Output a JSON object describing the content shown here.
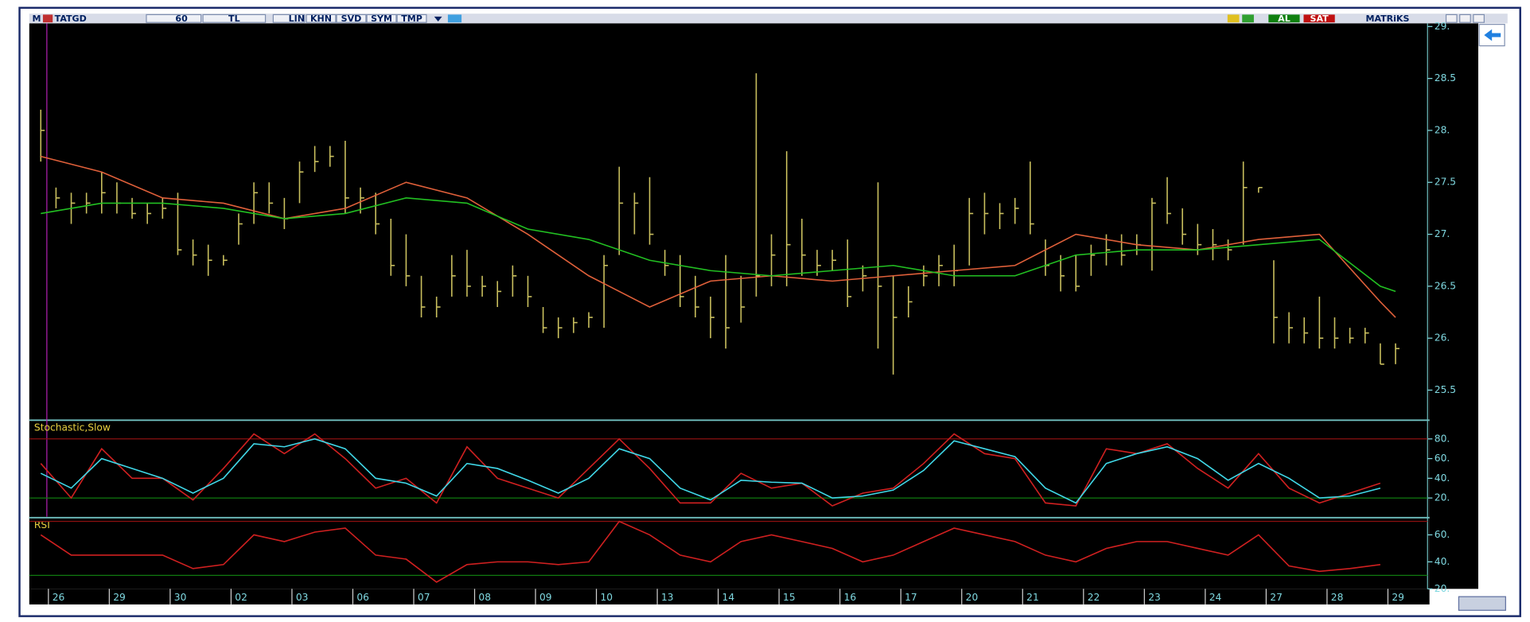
{
  "toolbar": {
    "logo": "M",
    "symbol": "TATGD",
    "period": "60",
    "currency": "TL",
    "buttons": [
      "LIN",
      "KHN",
      "SVD",
      "SYM",
      "TMP"
    ],
    "actions": [
      "AL",
      "SAT"
    ],
    "brand": "MATRiKS"
  },
  "chart_data": [
    {
      "type": "ohlc",
      "color": "#c9bf5e",
      "xlim": [
        -0.5,
        89.5
      ],
      "ylim": [
        25.22,
        29.03
      ],
      "yticks": [
        {
          "value": 25.5,
          "label": "25.5"
        },
        {
          "value": 26,
          "label": "26."
        },
        {
          "value": 26.5,
          "label": "26.5"
        },
        {
          "value": 27,
          "label": "27."
        },
        {
          "value": 27.5,
          "label": "27.5"
        },
        {
          "value": 28,
          "label": "28."
        },
        {
          "value": 28.5,
          "label": "28.5"
        },
        {
          "value": 29,
          "label": "29."
        }
      ],
      "xticks": [
        {
          "value": 1,
          "label": "26"
        },
        {
          "value": 5,
          "label": "29"
        },
        {
          "value": 9,
          "label": "30"
        },
        {
          "value": 13,
          "label": "02"
        },
        {
          "value": 17,
          "label": "03"
        },
        {
          "value": 21,
          "label": "06"
        },
        {
          "value": 25,
          "label": "07"
        },
        {
          "value": 29,
          "label": "08"
        },
        {
          "value": 33,
          "label": "09"
        },
        {
          "value": 37,
          "label": "10"
        },
        {
          "value": 41,
          "label": "13"
        },
        {
          "value": 45,
          "label": "14"
        },
        {
          "value": 49,
          "label": "15"
        },
        {
          "value": 53,
          "label": "16"
        },
        {
          "value": 57,
          "label": "17"
        },
        {
          "value": 61,
          "label": "20"
        },
        {
          "value": 65,
          "label": "21"
        },
        {
          "value": 69,
          "label": "22"
        },
        {
          "value": 73,
          "label": "23"
        },
        {
          "value": 77,
          "label": "24"
        },
        {
          "value": 81,
          "label": "27"
        },
        {
          "value": 85,
          "label": "28"
        },
        {
          "value": 89,
          "label": "29"
        }
      ],
      "high": [
        28.2,
        27.45,
        27.4,
        27.4,
        27.6,
        27.5,
        27.35,
        27.3,
        27.35,
        27.4,
        26.95,
        26.9,
        26.8,
        27.2,
        27.5,
        27.5,
        27.35,
        27.7,
        27.85,
        27.85,
        27.9,
        27.45,
        27.4,
        27.15,
        27.0,
        26.6,
        26.4,
        26.8,
        26.85,
        26.6,
        26.55,
        26.7,
        26.6,
        26.3,
        26.2,
        26.2,
        26.25,
        26.8,
        27.65,
        27.4,
        27.55,
        26.85,
        26.8,
        26.6,
        26.4,
        26.8,
        26.6,
        28.55,
        27.0,
        27.8,
        27.15,
        26.85,
        26.85,
        26.95,
        26.7,
        27.5,
        26.6,
        26.5,
        26.7,
        26.8,
        26.9,
        27.35,
        27.4,
        27.3,
        27.35,
        27.7,
        26.95,
        26.8,
        26.8,
        26.9,
        27.0,
        27.0,
        27.0,
        27.35,
        27.55,
        27.25,
        27.1,
        27.05,
        26.95,
        27.7,
        27.45,
        26.75,
        26.25,
        26.2,
        26.4,
        26.2,
        26.1,
        26.1,
        25.95,
        25.95
      ],
      "low": [
        27.7,
        27.25,
        27.1,
        27.2,
        27.2,
        27.2,
        27.15,
        27.1,
        27.15,
        26.8,
        26.7,
        26.6,
        26.7,
        26.9,
        27.1,
        27.2,
        27.05,
        27.3,
        27.6,
        27.65,
        27.2,
        27.2,
        27.0,
        26.6,
        26.5,
        26.2,
        26.2,
        26.4,
        26.4,
        26.4,
        26.3,
        26.4,
        26.3,
        26.05,
        26.0,
        26.05,
        26.1,
        26.1,
        26.8,
        27.0,
        26.9,
        26.6,
        26.3,
        26.2,
        26.0,
        25.9,
        26.15,
        26.4,
        26.5,
        26.5,
        26.6,
        26.6,
        26.65,
        26.3,
        26.45,
        25.9,
        25.65,
        26.2,
        26.5,
        26.5,
        26.5,
        26.7,
        27.0,
        27.05,
        27.1,
        27.0,
        26.6,
        26.45,
        26.45,
        26.6,
        26.7,
        26.7,
        26.8,
        26.65,
        27.1,
        26.9,
        26.8,
        26.75,
        26.75,
        26.9,
        27.4,
        25.95,
        25.95,
        25.95,
        25.9,
        25.9,
        25.95,
        25.95,
        25.75,
        25.75
      ],
      "close": [
        28.0,
        27.35,
        27.3,
        27.3,
        27.4,
        27.3,
        27.2,
        27.2,
        27.25,
        26.85,
        26.8,
        26.75,
        26.75,
        27.1,
        27.4,
        27.3,
        27.15,
        27.6,
        27.7,
        27.75,
        27.35,
        27.35,
        27.1,
        26.7,
        26.6,
        26.3,
        26.3,
        26.6,
        26.5,
        26.5,
        26.45,
        26.6,
        26.4,
        26.1,
        26.1,
        26.15,
        26.2,
        26.7,
        27.3,
        27.3,
        27.0,
        26.7,
        26.4,
        26.3,
        26.2,
        26.1,
        26.3,
        26.6,
        26.8,
        26.9,
        26.8,
        26.7,
        26.75,
        26.4,
        26.6,
        26.5,
        26.2,
        26.35,
        26.6,
        26.7,
        26.65,
        27.2,
        27.2,
        27.2,
        27.25,
        27.1,
        26.7,
        26.6,
        26.5,
        26.8,
        26.85,
        26.8,
        26.9,
        27.3,
        27.2,
        27.0,
        26.9,
        26.9,
        26.85,
        27.45,
        27.45,
        26.2,
        26.1,
        26.05,
        26.0,
        26.0,
        26.0,
        26.05,
        25.75,
        25.9
      ],
      "series": [
        {
          "color": "#e0603a",
          "x": [
            0,
            4,
            8,
            12,
            16,
            20,
            24,
            28,
            32,
            36,
            40,
            44,
            48,
            52,
            56,
            60,
            64,
            68,
            72,
            76,
            80,
            84,
            88,
            89
          ],
          "values": [
            27.75,
            27.6,
            27.35,
            27.3,
            27.15,
            27.25,
            27.5,
            27.35,
            27.0,
            26.6,
            26.3,
            26.55,
            26.6,
            26.55,
            26.6,
            26.65,
            26.7,
            27.0,
            26.9,
            26.85,
            26.95,
            27.0,
            26.35,
            26.2
          ]
        },
        {
          "color": "#22c022",
          "x": [
            0,
            4,
            8,
            12,
            16,
            20,
            24,
            28,
            32,
            36,
            40,
            44,
            48,
            52,
            56,
            60,
            64,
            68,
            72,
            76,
            80,
            84,
            88,
            89
          ],
          "values": [
            27.2,
            27.3,
            27.3,
            27.25,
            27.15,
            27.2,
            27.35,
            27.3,
            27.05,
            26.95,
            26.75,
            26.65,
            26.6,
            26.65,
            26.7,
            26.6,
            26.6,
            26.8,
            26.85,
            26.85,
            26.9,
            26.95,
            26.5,
            26.45
          ]
        }
      ]
    },
    {
      "type": "line",
      "title": "Stochastic,Slow",
      "ylim": [
        1,
        98
      ],
      "yticks": [
        {
          "value": 20,
          "label": "20."
        },
        {
          "value": 40,
          "label": "40."
        },
        {
          "value": 60,
          "label": "60."
        },
        {
          "value": 80,
          "label": "80."
        }
      ],
      "reference_lines": [
        {
          "value": 80,
          "color": "#8a1010"
        },
        {
          "value": 20,
          "color": "#107a10"
        }
      ],
      "series": [
        {
          "color": "#d02020",
          "x": [
            0,
            2,
            4,
            6,
            8,
            10,
            12,
            14,
            16,
            18,
            20,
            22,
            24,
            26,
            28,
            30,
            32,
            34,
            36,
            38,
            40,
            42,
            44,
            46,
            48,
            50,
            52,
            54,
            56,
            58,
            60,
            62,
            64,
            66,
            68,
            70,
            72,
            74,
            76,
            78,
            80,
            82,
            84,
            86,
            88
          ],
          "values": [
            55,
            20,
            70,
            40,
            40,
            18,
            50,
            85,
            65,
            85,
            60,
            30,
            40,
            15,
            72,
            40,
            30,
            20,
            50,
            80,
            50,
            15,
            15,
            45,
            30,
            35,
            12,
            25,
            30,
            55,
            85,
            65,
            60,
            15,
            12,
            70,
            65,
            75,
            50,
            30,
            65,
            30,
            15,
            25,
            35
          ]
        },
        {
          "color": "#40d8e8",
          "x": [
            0,
            2,
            4,
            6,
            8,
            10,
            12,
            14,
            16,
            18,
            20,
            22,
            24,
            26,
            28,
            30,
            32,
            34,
            36,
            38,
            40,
            42,
            44,
            46,
            48,
            50,
            52,
            54,
            56,
            58,
            60,
            62,
            64,
            66,
            68,
            70,
            72,
            74,
            76,
            78,
            80,
            82,
            84,
            86,
            88
          ],
          "values": [
            45,
            30,
            60,
            50,
            40,
            25,
            40,
            75,
            72,
            80,
            70,
            40,
            35,
            22,
            55,
            50,
            38,
            25,
            40,
            70,
            60,
            30,
            18,
            38,
            36,
            35,
            20,
            22,
            28,
            48,
            78,
            70,
            62,
            30,
            15,
            55,
            65,
            72,
            60,
            38,
            55,
            40,
            20,
            22,
            30
          ]
        }
      ]
    },
    {
      "type": "line",
      "title": "RSI",
      "ylim": [
        20,
        72
      ],
      "yticks": [
        {
          "value": 20,
          "label": "20."
        },
        {
          "value": 40,
          "label": "40."
        },
        {
          "value": 60,
          "label": "60."
        }
      ],
      "reference_lines": [
        {
          "value": 70,
          "color": "#8a1010"
        },
        {
          "value": 30,
          "color": "#107a10"
        }
      ],
      "series": [
        {
          "color": "#d02020",
          "x": [
            0,
            2,
            4,
            6,
            8,
            10,
            12,
            14,
            16,
            18,
            20,
            22,
            24,
            26,
            28,
            30,
            32,
            34,
            36,
            38,
            40,
            42,
            44,
            46,
            48,
            50,
            52,
            54,
            56,
            58,
            60,
            62,
            64,
            66,
            68,
            70,
            72,
            74,
            76,
            78,
            80,
            82,
            84,
            86,
            88
          ],
          "values": [
            60,
            45,
            45,
            45,
            45,
            35,
            38,
            60,
            55,
            62,
            65,
            45,
            42,
            25,
            38,
            40,
            40,
            38,
            40,
            70,
            60,
            45,
            40,
            55,
            60,
            55,
            50,
            40,
            45,
            55,
            65,
            60,
            55,
            45,
            40,
            50,
            55,
            55,
            50,
            45,
            60,
            37,
            33,
            35,
            38
          ]
        }
      ]
    }
  ]
}
